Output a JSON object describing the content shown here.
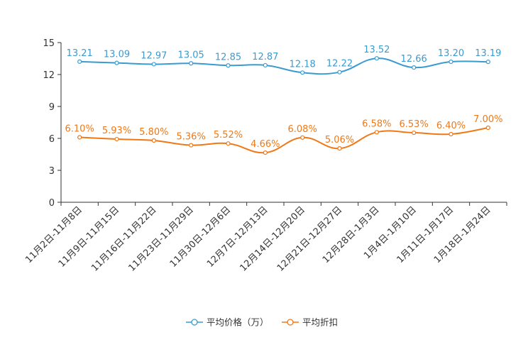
{
  "chart_data": {
    "type": "line",
    "title": "",
    "xlabel": "",
    "ylabel": "",
    "ylim": [
      0,
      15
    ],
    "yticks": [
      "0",
      "3",
      "6",
      "9",
      "12",
      "15"
    ],
    "grid": false,
    "legend_position": "bottom-center",
    "categories": [
      "11月2日-11月8日",
      "11月9日-11月15日",
      "11月16日-11月22日",
      "11月23日-11月29日",
      "11月30日-12月6日",
      "12月7日-12月13日",
      "12月14日-12月20日",
      "12月21日-12月27日",
      "12月28日-1月3日",
      "1月4日-1月10日",
      "1月11日-1月17日",
      "1月18日-1月24日"
    ],
    "series": [
      {
        "name": "平均价格（万）",
        "color": "#3a9bd0",
        "values": [
          13.21,
          13.09,
          12.97,
          13.05,
          12.85,
          12.87,
          12.18,
          12.22,
          13.52,
          12.66,
          13.2,
          13.19
        ],
        "labels": [
          "13.21",
          "13.09",
          "12.97",
          "13.05",
          "12.85",
          "12.87",
          "12.18",
          "12.22",
          "13.52",
          "12.66",
          "13.20",
          "13.19"
        ]
      },
      {
        "name": "平均折扣",
        "color": "#f07817",
        "values": [
          6.1,
          5.93,
          5.8,
          5.36,
          5.52,
          4.66,
          6.08,
          5.06,
          6.58,
          6.53,
          6.4,
          7.0
        ],
        "labels": [
          "6.10%",
          "5.93%",
          "5.80%",
          "5.36%",
          "5.52%",
          "4.66%",
          "6.08%",
          "5.06%",
          "6.58%",
          "6.53%",
          "6.40%",
          "7.00%"
        ]
      }
    ]
  }
}
